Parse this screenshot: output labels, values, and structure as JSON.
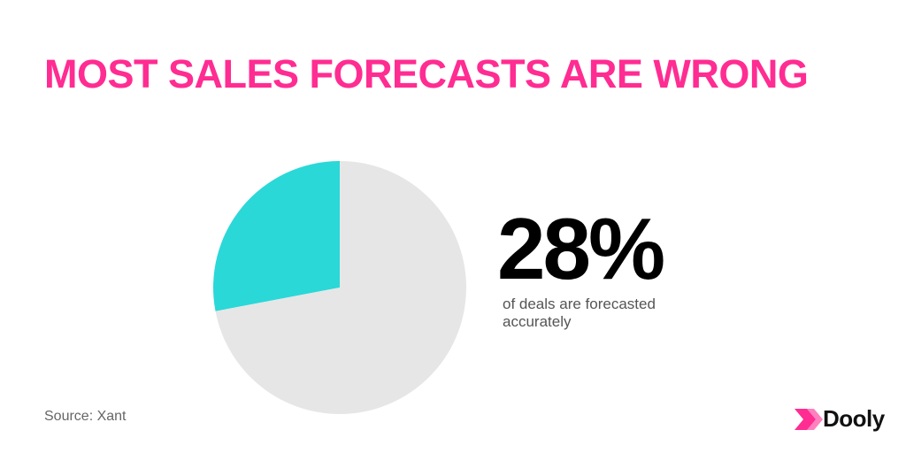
{
  "chart_data": {
    "type": "pie",
    "title": "MOST SALES FORECASTS ARE WRONG",
    "values": [
      28,
      72
    ],
    "value_labels": [
      "28%",
      null
    ],
    "colors": [
      "#2ad8d8",
      "#e6e6e6"
    ],
    "annotation": "of deals are forecasted accurately",
    "source": "Source: Xant"
  },
  "logo": "Dooly"
}
